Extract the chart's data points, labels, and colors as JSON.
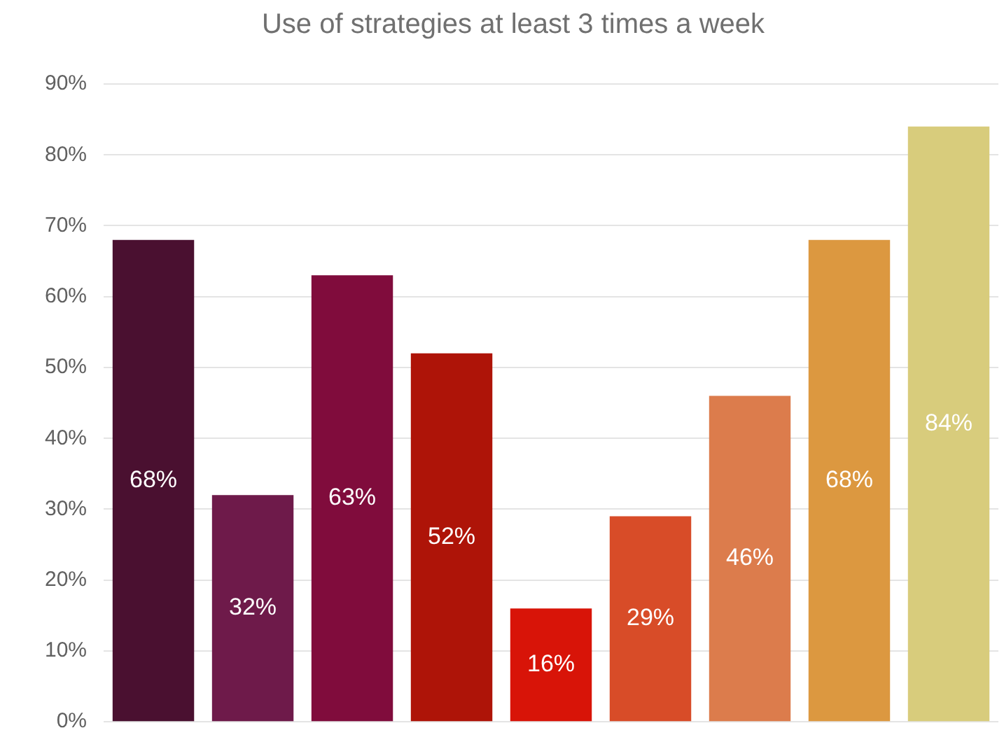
{
  "chart_data": {
    "type": "bar",
    "title": "Use of strategies at least 3 times a week",
    "categories": [
      null,
      null,
      null,
      null,
      null,
      null,
      null,
      null,
      null
    ],
    "values": [
      68,
      32,
      63,
      52,
      16,
      29,
      46,
      68,
      84
    ],
    "value_labels": [
      "68%",
      "32%",
      "63%",
      "52%",
      "16%",
      "29%",
      "46%",
      "68%",
      "84%"
    ],
    "colors": [
      "#4a1030",
      "#6e1a4a",
      "#800c3c",
      "#ae1408",
      "#d81408",
      "#d84c28",
      "#dc7c4c",
      "#dc9840",
      "#d8cc7c"
    ],
    "ylim": [
      0,
      90
    ],
    "yticks": [
      {
        "value": 0,
        "label": "0%"
      },
      {
        "value": 10,
        "label": "10%"
      },
      {
        "value": 20,
        "label": "20%"
      },
      {
        "value": 30,
        "label": "30%"
      },
      {
        "value": 40,
        "label": "40%"
      },
      {
        "value": 50,
        "label": "50%"
      },
      {
        "value": 60,
        "label": "60%"
      },
      {
        "value": 70,
        "label": "70%"
      },
      {
        "value": 80,
        "label": "80%"
      },
      {
        "value": 90,
        "label": "90%"
      }
    ],
    "grid": "y",
    "legend": false
  }
}
